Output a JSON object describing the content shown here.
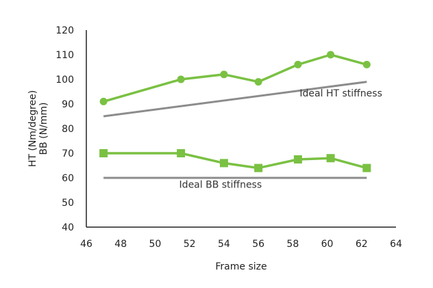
{
  "chart_data": {
    "type": "line",
    "xlabel": "Frame size",
    "ylabel_lines": [
      "HT (Nm/degree)",
      "BB (N/mm)"
    ],
    "xlim": [
      46,
      64
    ],
    "ylim": [
      40,
      120
    ],
    "xticks": [
      46,
      48,
      50,
      52,
      54,
      56,
      58,
      60,
      62,
      64
    ],
    "yticks": [
      40,
      50,
      60,
      70,
      80,
      90,
      100,
      110,
      120
    ],
    "grid": false,
    "series": [
      {
        "x": [
          47,
          51.5,
          54,
          56,
          58.3,
          60.2,
          62.3
        ],
        "y": [
          91,
          100,
          102,
          99,
          106,
          110,
          106
        ],
        "marker": "circle",
        "color": "#7ac143"
      },
      {
        "x": [
          47,
          51.5,
          54,
          56,
          58.3,
          60.2,
          62.3
        ],
        "y": [
          70,
          70,
          66,
          64,
          67.5,
          68,
          64
        ],
        "marker": "square",
        "color": "#7ac143"
      },
      {
        "name": "Ideal HT stiffness",
        "x": [
          47,
          62.3
        ],
        "y": [
          85,
          99
        ],
        "marker": "none",
        "color": "#8c8c8c"
      },
      {
        "name": "Ideal BB stiffness",
        "x": [
          47,
          62.3
        ],
        "y": [
          60,
          60
        ],
        "marker": "none",
        "color": "#8c8c8c"
      }
    ],
    "annotations": [
      {
        "text": "Ideal HT stiffness",
        "x": 60.8,
        "y": 93
      },
      {
        "text": "Ideal BB stiffness",
        "x": 53.8,
        "y": 56
      }
    ]
  }
}
